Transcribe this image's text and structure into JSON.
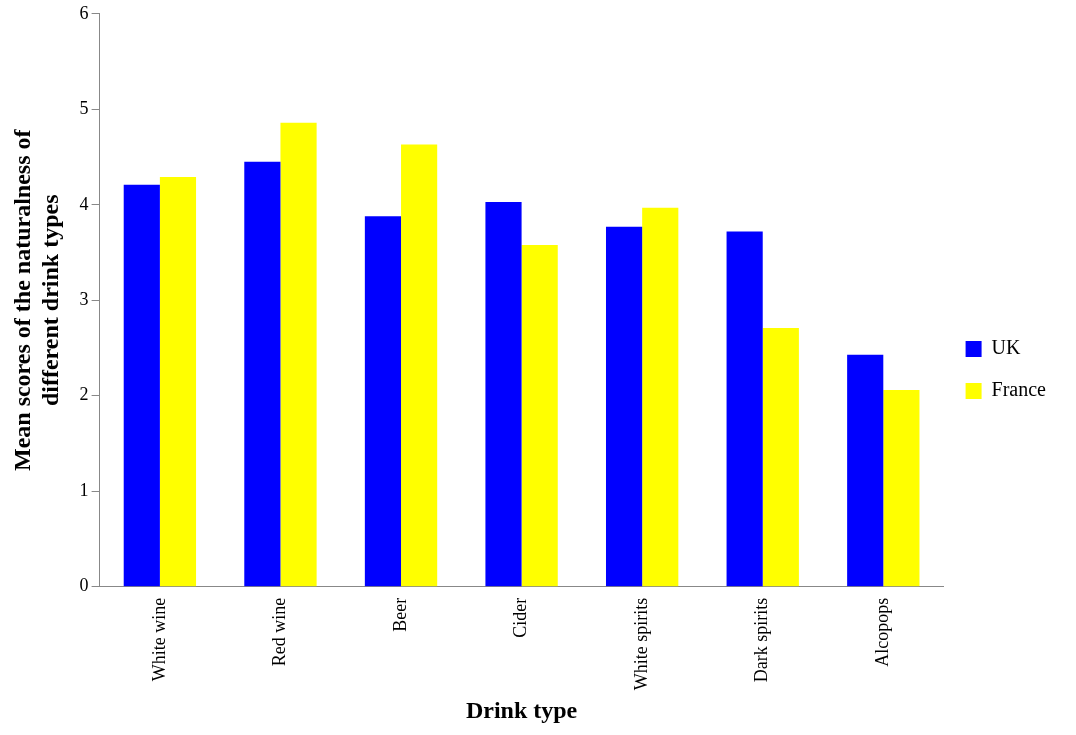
{
  "chart_data": {
    "type": "bar",
    "xlabel": "Drink type",
    "ylabel": "Mean scores of the naturalness of different drink types",
    "categories": [
      "White wine",
      "Red wine",
      "Beer",
      "Cider",
      "White spirits",
      "Dark spirits",
      "Alcopops"
    ],
    "series": [
      {
        "name": "UK",
        "color": "#0000ff",
        "values": [
          4.21,
          4.45,
          3.88,
          4.03,
          3.77,
          3.72,
          2.43
        ]
      },
      {
        "name": "France",
        "color": "#ffff00",
        "values": [
          4.29,
          4.86,
          4.63,
          3.58,
          3.97,
          2.71,
          2.06
        ]
      }
    ],
    "ylim": [
      0,
      6
    ],
    "yticks": [
      0,
      1,
      2,
      3,
      4,
      5,
      6
    ],
    "grid": false,
    "legend": "right"
  }
}
